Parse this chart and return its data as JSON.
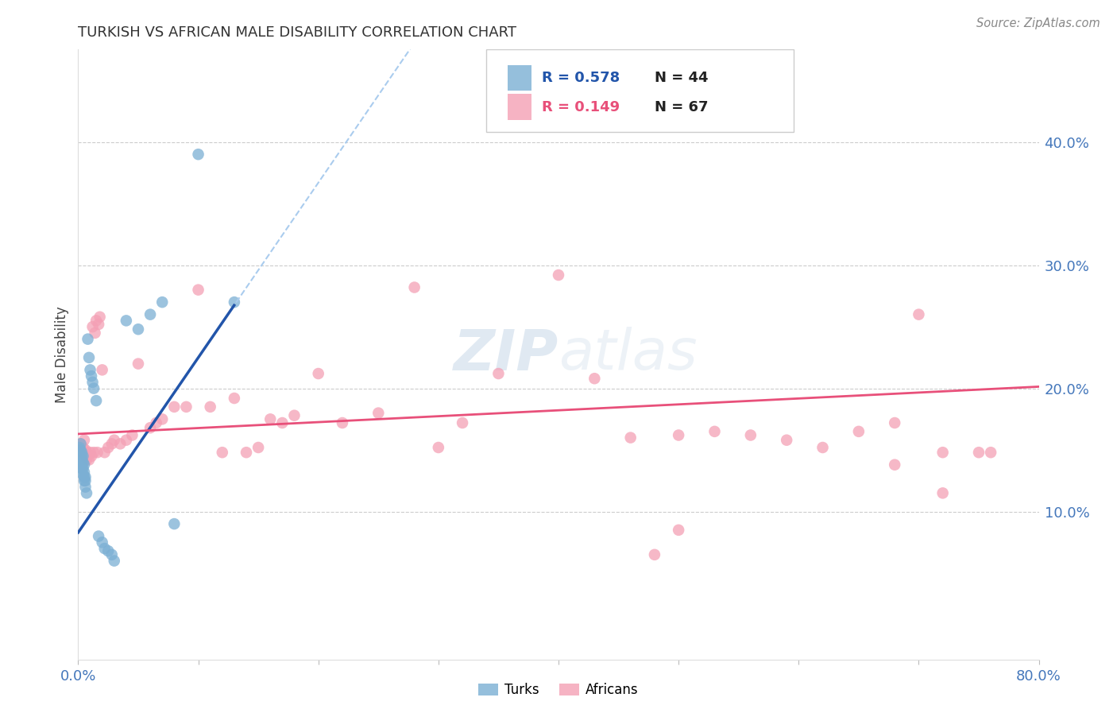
{
  "title": "TURKISH VS AFRICAN MALE DISABILITY CORRELATION CHART",
  "source": "Source: ZipAtlas.com",
  "ylabel": "Male Disability",
  "x_min": 0.0,
  "x_max": 0.8,
  "y_min": 0.0,
  "y_max": 0.45,
  "turks_R": 0.578,
  "turks_N": 44,
  "africans_R": 0.149,
  "africans_N": 67,
  "turks_color": "#7BAFD4",
  "africans_color": "#F4A0B5",
  "turks_line_color": "#2255AA",
  "africans_line_color": "#E8507A",
  "dashed_line_color": "#AACCEE",
  "background_color": "#FFFFFF",
  "watermark_zip": "ZIP",
  "watermark_atlas": "atlas",
  "turks_x": [
    0.001,
    0.001,
    0.001,
    0.002,
    0.002,
    0.002,
    0.002,
    0.003,
    0.003,
    0.003,
    0.003,
    0.003,
    0.004,
    0.004,
    0.004,
    0.004,
    0.005,
    0.005,
    0.005,
    0.005,
    0.006,
    0.006,
    0.006,
    0.007,
    0.008,
    0.009,
    0.01,
    0.011,
    0.012,
    0.013,
    0.015,
    0.017,
    0.02,
    0.022,
    0.025,
    0.028,
    0.03,
    0.04,
    0.05,
    0.06,
    0.07,
    0.08,
    0.1,
    0.13
  ],
  "turks_y": [
    0.145,
    0.148,
    0.152,
    0.138,
    0.142,
    0.15,
    0.155,
    0.135,
    0.138,
    0.142,
    0.145,
    0.148,
    0.13,
    0.135,
    0.14,
    0.145,
    0.125,
    0.128,
    0.132,
    0.138,
    0.12,
    0.125,
    0.128,
    0.115,
    0.24,
    0.225,
    0.215,
    0.21,
    0.205,
    0.2,
    0.19,
    0.08,
    0.075,
    0.07,
    0.068,
    0.065,
    0.06,
    0.255,
    0.248,
    0.26,
    0.27,
    0.09,
    0.39,
    0.27
  ],
  "africans_x": [
    0.002,
    0.003,
    0.004,
    0.005,
    0.006,
    0.006,
    0.007,
    0.007,
    0.008,
    0.009,
    0.01,
    0.011,
    0.012,
    0.013,
    0.014,
    0.015,
    0.016,
    0.017,
    0.018,
    0.02,
    0.022,
    0.025,
    0.028,
    0.03,
    0.035,
    0.04,
    0.045,
    0.05,
    0.06,
    0.065,
    0.07,
    0.08,
    0.09,
    0.1,
    0.11,
    0.12,
    0.13,
    0.14,
    0.15,
    0.16,
    0.17,
    0.18,
    0.2,
    0.22,
    0.25,
    0.28,
    0.3,
    0.32,
    0.35,
    0.4,
    0.43,
    0.46,
    0.5,
    0.53,
    0.56,
    0.59,
    0.62,
    0.65,
    0.68,
    0.7,
    0.72,
    0.75,
    0.76,
    0.68,
    0.72,
    0.5,
    0.48
  ],
  "africans_y": [
    0.155,
    0.148,
    0.152,
    0.158,
    0.145,
    0.15,
    0.142,
    0.148,
    0.145,
    0.142,
    0.148,
    0.145,
    0.25,
    0.148,
    0.245,
    0.255,
    0.148,
    0.252,
    0.258,
    0.215,
    0.148,
    0.152,
    0.155,
    0.158,
    0.155,
    0.158,
    0.162,
    0.22,
    0.168,
    0.172,
    0.175,
    0.185,
    0.185,
    0.28,
    0.185,
    0.148,
    0.192,
    0.148,
    0.152,
    0.175,
    0.172,
    0.178,
    0.212,
    0.172,
    0.18,
    0.282,
    0.152,
    0.172,
    0.212,
    0.292,
    0.208,
    0.16,
    0.162,
    0.165,
    0.162,
    0.158,
    0.152,
    0.165,
    0.172,
    0.26,
    0.148,
    0.148,
    0.148,
    0.138,
    0.115,
    0.085,
    0.065
  ]
}
